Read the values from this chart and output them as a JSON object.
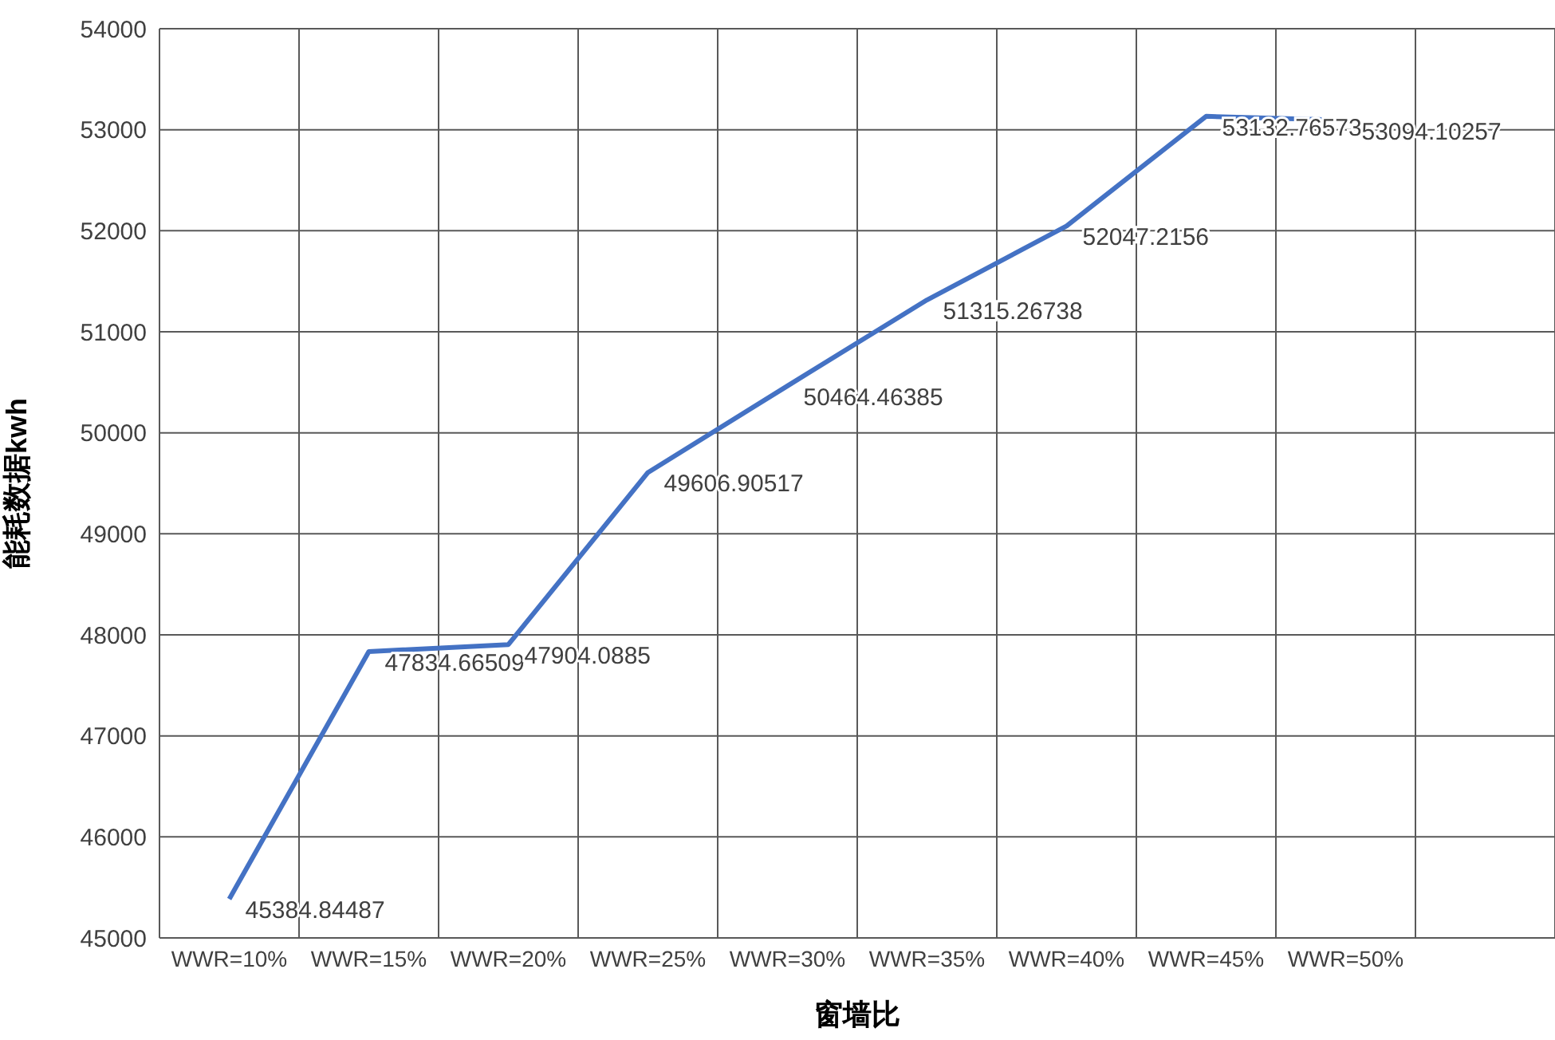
{
  "chart_data": {
    "type": "line",
    "xlabel": "窗墙比",
    "ylabel": "能耗数据kwh",
    "categories": [
      "WWR=10%",
      "WWR=15%",
      "WWR=20%",
      "WWR=25%",
      "WWR=30%",
      "WWR=35%",
      "WWR=40%",
      "WWR=45%",
      "WWR=50%",
      null
    ],
    "series": [
      {
        "color": "#4472c4",
        "values": [
          45384.84487,
          47834.66509,
          47904.0885,
          49606.90517,
          50464.46385,
          51315.26738,
          52047.2156,
          53132.76573,
          53094.10257,
          null
        ]
      }
    ],
    "ylim": [
      45000,
      54000
    ],
    "yticks": [
      45000,
      46000,
      47000,
      48000,
      49000,
      50000,
      51000,
      52000,
      53000,
      54000
    ],
    "grid": true,
    "data_labels": true,
    "marker": "none",
    "line_style": "solid"
  }
}
